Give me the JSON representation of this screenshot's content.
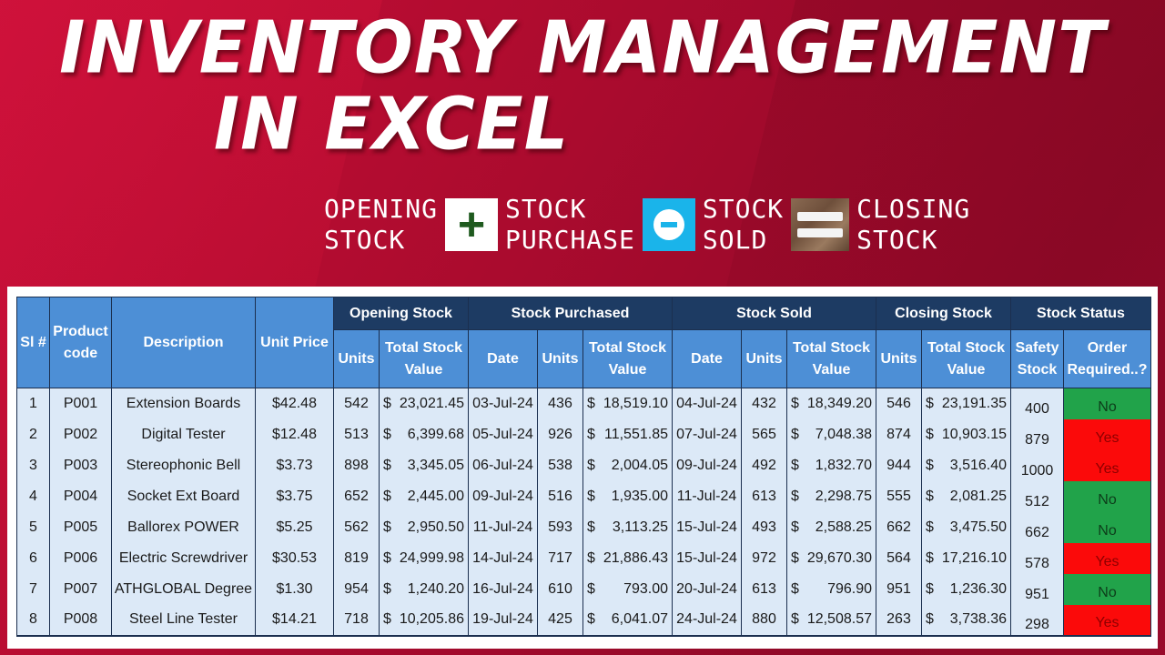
{
  "title": {
    "line1": "INVENTORY MANAGEMENT",
    "line2": "IN EXCEL"
  },
  "formula": {
    "term1": "OPENING\nSTOCK",
    "op1": "+",
    "term2": "STOCK\nPURCHASE",
    "op2": "minus-icon",
    "term3": "STOCK\nSOLD",
    "op3": "equals-icon",
    "term4": "CLOSING\nSTOCK"
  },
  "colors": {
    "background": "#b30c30",
    "group_header": "#1d3b63",
    "column_header": "#4d8fd6",
    "cell": "#dce9f7",
    "status_no": "#21a34a",
    "status_yes": "#fb0a0a"
  },
  "table": {
    "headers": {
      "sl": "Sl #",
      "product_code": "Product code",
      "description": "Description",
      "unit_price": "Unit Price",
      "groups": {
        "opening": "Opening Stock",
        "purchased": "Stock Purchased",
        "sold": "Stock Sold",
        "closing": "Closing Stock",
        "status": "Stock Status"
      },
      "units": "Units",
      "total_value": "Total Stock Value",
      "date": "Date",
      "safety_stock": "Safety Stock",
      "order_required": "Order Required..?"
    },
    "rows": [
      {
        "sl": "1",
        "code": "P001",
        "desc": "Extension Boards",
        "price": "$42.48",
        "open_units": "542",
        "open_value": "23,021.45",
        "p_date": "03-Jul-24",
        "p_units": "436",
        "p_value": "18,519.10",
        "s_date": "04-Jul-24",
        "s_units": "432",
        "s_value": "18,349.20",
        "c_units": "546",
        "c_value": "23,191.35",
        "safety": "400",
        "order": "No"
      },
      {
        "sl": "2",
        "code": "P002",
        "desc": "Digital Tester",
        "price": "$12.48",
        "open_units": "513",
        "open_value": "6,399.68",
        "p_date": "05-Jul-24",
        "p_units": "926",
        "p_value": "11,551.85",
        "s_date": "07-Jul-24",
        "s_units": "565",
        "s_value": "7,048.38",
        "c_units": "874",
        "c_value": "10,903.15",
        "safety": "879",
        "order": "Yes"
      },
      {
        "sl": "3",
        "code": "P003",
        "desc": "Stereophonic Bell",
        "price": "$3.73",
        "open_units": "898",
        "open_value": "3,345.05",
        "p_date": "06-Jul-24",
        "p_units": "538",
        "p_value": "2,004.05",
        "s_date": "09-Jul-24",
        "s_units": "492",
        "s_value": "1,832.70",
        "c_units": "944",
        "c_value": "3,516.40",
        "safety": "1000",
        "order": "Yes"
      },
      {
        "sl": "4",
        "code": "P004",
        "desc": "Socket Ext Board",
        "price": "$3.75",
        "open_units": "652",
        "open_value": "2,445.00",
        "p_date": "09-Jul-24",
        "p_units": "516",
        "p_value": "1,935.00",
        "s_date": "11-Jul-24",
        "s_units": "613",
        "s_value": "2,298.75",
        "c_units": "555",
        "c_value": "2,081.25",
        "safety": "512",
        "order": "No"
      },
      {
        "sl": "5",
        "code": "P005",
        "desc": "Ballorex POWER",
        "price": "$5.25",
        "open_units": "562",
        "open_value": "2,950.50",
        "p_date": "11-Jul-24",
        "p_units": "593",
        "p_value": "3,113.25",
        "s_date": "15-Jul-24",
        "s_units": "493",
        "s_value": "2,588.25",
        "c_units": "662",
        "c_value": "3,475.50",
        "safety": "662",
        "order": "No"
      },
      {
        "sl": "6",
        "code": "P006",
        "desc": "Electric Screwdriver",
        "price": "$30.53",
        "open_units": "819",
        "open_value": "24,999.98",
        "p_date": "14-Jul-24",
        "p_units": "717",
        "p_value": "21,886.43",
        "s_date": "15-Jul-24",
        "s_units": "972",
        "s_value": "29,670.30",
        "c_units": "564",
        "c_value": "17,216.10",
        "safety": "578",
        "order": "Yes"
      },
      {
        "sl": "7",
        "code": "P007",
        "desc": "ATHGLOBAL Degree",
        "price": "$1.30",
        "open_units": "954",
        "open_value": "1,240.20",
        "p_date": "16-Jul-24",
        "p_units": "610",
        "p_value": "793.00",
        "s_date": "20-Jul-24",
        "s_units": "613",
        "s_value": "796.90",
        "c_units": "951",
        "c_value": "1,236.30",
        "safety": "951",
        "order": "No"
      },
      {
        "sl": "8",
        "code": "P008",
        "desc": "Steel Line Tester",
        "price": "$14.21",
        "open_units": "718",
        "open_value": "10,205.86",
        "p_date": "19-Jul-24",
        "p_units": "425",
        "p_value": "6,041.07",
        "s_date": "24-Jul-24",
        "s_units": "880",
        "s_value": "12,508.57",
        "c_units": "263",
        "c_value": "3,738.36",
        "safety": "298",
        "order": "Yes"
      }
    ],
    "currency_symbol": "$"
  }
}
